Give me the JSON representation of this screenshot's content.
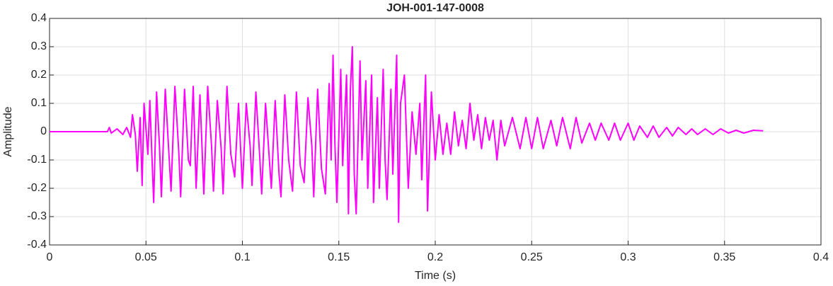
{
  "chart_data": {
    "type": "line",
    "title": "JOH-001-147-0008",
    "xlabel": "Time (s)",
    "ylabel": "Amplitude",
    "color": "#ff00ff",
    "grid": true,
    "xlim": [
      0,
      0.4
    ],
    "ylim": [
      -0.4,
      0.4
    ],
    "xticks": [
      0,
      0.05,
      0.1,
      0.15,
      0.2,
      0.25,
      0.3,
      0.35,
      0.4
    ],
    "yticks": [
      -0.4,
      -0.3,
      -0.2,
      -0.1,
      0,
      0.1,
      0.2,
      0.3,
      0.4
    ],
    "x": [
      0,
      0.03,
      0.031,
      0.032,
      0.035,
      0.038,
      0.04,
      0.042,
      0.043,
      0.0445,
      0.0455,
      0.047,
      0.048,
      0.049,
      0.051,
      0.052,
      0.054,
      0.0555,
      0.057,
      0.058,
      0.06,
      0.062,
      0.063,
      0.065,
      0.067,
      0.068,
      0.07,
      0.072,
      0.073,
      0.0745,
      0.076,
      0.078,
      0.08,
      0.082,
      0.084,
      0.085,
      0.087,
      0.089,
      0.09,
      0.092,
      0.094,
      0.096,
      0.098,
      0.1,
      0.102,
      0.104,
      0.105,
      0.107,
      0.109,
      0.11,
      0.112,
      0.114,
      0.115,
      0.117,
      0.119,
      0.12,
      0.122,
      0.124,
      0.126,
      0.128,
      0.13,
      0.132,
      0.134,
      0.136,
      0.137,
      0.139,
      0.141,
      0.143,
      0.145,
      0.146,
      0.147,
      0.148,
      0.149,
      0.151,
      0.152,
      0.154,
      0.155,
      0.156,
      0.157,
      0.158,
      0.159,
      0.161,
      0.162,
      0.164,
      0.165,
      0.167,
      0.168,
      0.17,
      0.171,
      0.173,
      0.174,
      0.175,
      0.177,
      0.178,
      0.18,
      0.181,
      0.182,
      0.184,
      0.186,
      0.188,
      0.19,
      0.192,
      0.193,
      0.195,
      0.196,
      0.198,
      0.2,
      0.202,
      0.204,
      0.206,
      0.208,
      0.21,
      0.212,
      0.214,
      0.216,
      0.218,
      0.22,
      0.222,
      0.224,
      0.226,
      0.228,
      0.23,
      0.232,
      0.234,
      0.236,
      0.24,
      0.244,
      0.247,
      0.25,
      0.253,
      0.256,
      0.26,
      0.263,
      0.266,
      0.27,
      0.273,
      0.276,
      0.28,
      0.283,
      0.286,
      0.29,
      0.293,
      0.296,
      0.3,
      0.303,
      0.306,
      0.31,
      0.313,
      0.316,
      0.32,
      0.323,
      0.326,
      0.33,
      0.333,
      0.336,
      0.34,
      0.344,
      0.348,
      0.352,
      0.356,
      0.36,
      0.365,
      0.37
    ],
    "values": [
      0,
      0,
      0.015,
      -0.005,
      0.01,
      -0.01,
      0.015,
      -0.02,
      0.06,
      -0.01,
      -0.14,
      0.05,
      -0.19,
      0.1,
      -0.08,
      0.11,
      -0.25,
      0.14,
      -0.05,
      -0.23,
      0.15,
      -0.09,
      -0.21,
      0.16,
      -0.07,
      -0.23,
      0.15,
      -0.1,
      -0.12,
      0.16,
      -0.2,
      0.13,
      -0.22,
      0.16,
      -0.05,
      -0.21,
      0.11,
      -0.06,
      -0.22,
      0.16,
      -0.08,
      -0.16,
      0.1,
      -0.2,
      0.1,
      -0.05,
      -0.19,
      0.14,
      -0.09,
      -0.22,
      0.1,
      -0.1,
      -0.2,
      0.11,
      -0.15,
      -0.23,
      0.13,
      -0.1,
      -0.21,
      0.14,
      -0.12,
      -0.18,
      0.12,
      -0.05,
      -0.23,
      0.15,
      -0.13,
      -0.22,
      0.17,
      -0.1,
      0.27,
      -0.05,
      -0.25,
      0.22,
      -0.12,
      0.2,
      -0.29,
      0.15,
      0.3,
      -0.15,
      -0.29,
      0.25,
      -0.1,
      0.18,
      -0.2,
      0.2,
      -0.25,
      0.12,
      -0.2,
      0.22,
      -0.1,
      -0.24,
      0.15,
      -0.15,
      0.27,
      -0.32,
      0.1,
      0.2,
      -0.2,
      0.07,
      -0.08,
      0.1,
      -0.17,
      0.2,
      -0.28,
      0.14,
      -0.1,
      0.06,
      -0.08,
      0.03,
      -0.08,
      0.07,
      -0.05,
      0.04,
      -0.06,
      0.1,
      -0.03,
      0.06,
      -0.06,
      0.05,
      -0.03,
      0.04,
      -0.1,
      0.04,
      -0.05,
      0.05,
      -0.06,
      0.05,
      -0.06,
      0.05,
      -0.06,
      0.04,
      -0.05,
      0.05,
      -0.06,
      0.05,
      -0.04,
      0.03,
      -0.03,
      0.03,
      -0.03,
      0.03,
      -0.03,
      0.03,
      -0.03,
      0.02,
      -0.02,
      0.02,
      -0.02,
      0.015,
      -0.015,
      0.015,
      -0.01,
      0.01,
      -0.01,
      0.01,
      -0.01,
      0.01,
      -0.005,
      0.005,
      -0.005,
      0.005,
      0.003
    ]
  }
}
